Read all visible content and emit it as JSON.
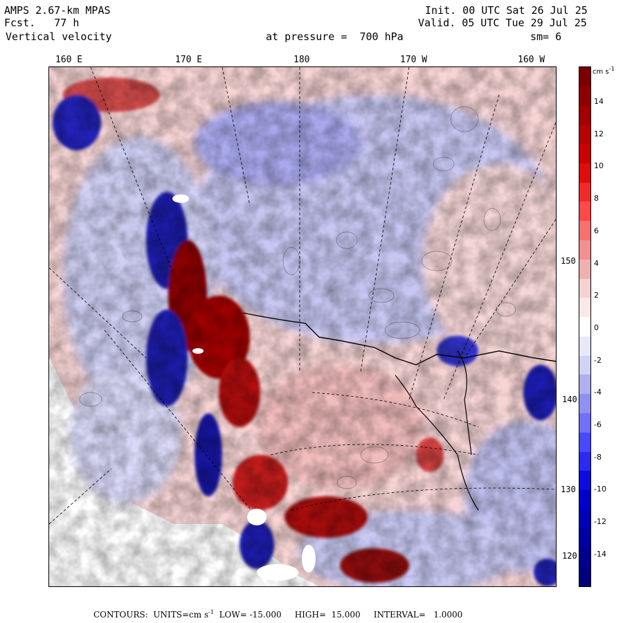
{
  "header": {
    "model": "AMPS 2.67-km MPAS",
    "fcst_label": "Fcst.",
    "fcst_value": "77 h",
    "field": "Vertical velocity",
    "init": "Init. 00 UTC Sat 26 Jul 25",
    "valid": "Valid. 05 UTC Tue 29 Jul 25",
    "pressure": "at pressure =  700 hPa",
    "smoothing": "sm= 6"
  },
  "map": {
    "longitude_labels": [
      "160 E",
      "170 E",
      "180",
      "170 W",
      "160 W"
    ],
    "latitude_labels": [
      "150 W",
      "140 W",
      "130 W",
      "120 W"
    ],
    "colors": {
      "strong_up": "#7f0000",
      "up": "#e53030",
      "weak_up": "#f4c4c4",
      "neutral": "#ffffff",
      "weak_down": "#c8c8f4",
      "down": "#3030e0",
      "strong_down": "#00007f"
    }
  },
  "colorbar": {
    "unit": "cm s",
    "unit_exp": "-1",
    "tick_labels": [
      "14",
      "12",
      "10",
      "8",
      "6",
      "4",
      "2",
      "0",
      "-2",
      "-4",
      "-6",
      "-8",
      "-10",
      "-12",
      "-14"
    ],
    "colors": [
      "#7a0000",
      "#8e0000",
      "#a30000",
      "#b80000",
      "#cd0000",
      "#e00c0c",
      "#f02a2a",
      "#ff4848",
      "#f87070",
      "#f29090",
      "#eeb0b0",
      "#f5d2d2",
      "#fbe8e8",
      "#ffffff",
      "#e8e8fb",
      "#d2d2f5",
      "#b0b0ee",
      "#9090f2",
      "#7070f8",
      "#4848ff",
      "#2a2af0",
      "#0c0ce0",
      "#0000cd",
      "#0000b8",
      "#0000a3",
      "#00008e",
      "#00007a"
    ]
  },
  "footer": {
    "contours_label": "CONTOURS:",
    "units_label": "UNITS=cm s",
    "units_exp": "-1",
    "low": "LOW= -15.000",
    "high": "HIGH=  15.000",
    "interval": "INTERVAL=   1.0000"
  }
}
